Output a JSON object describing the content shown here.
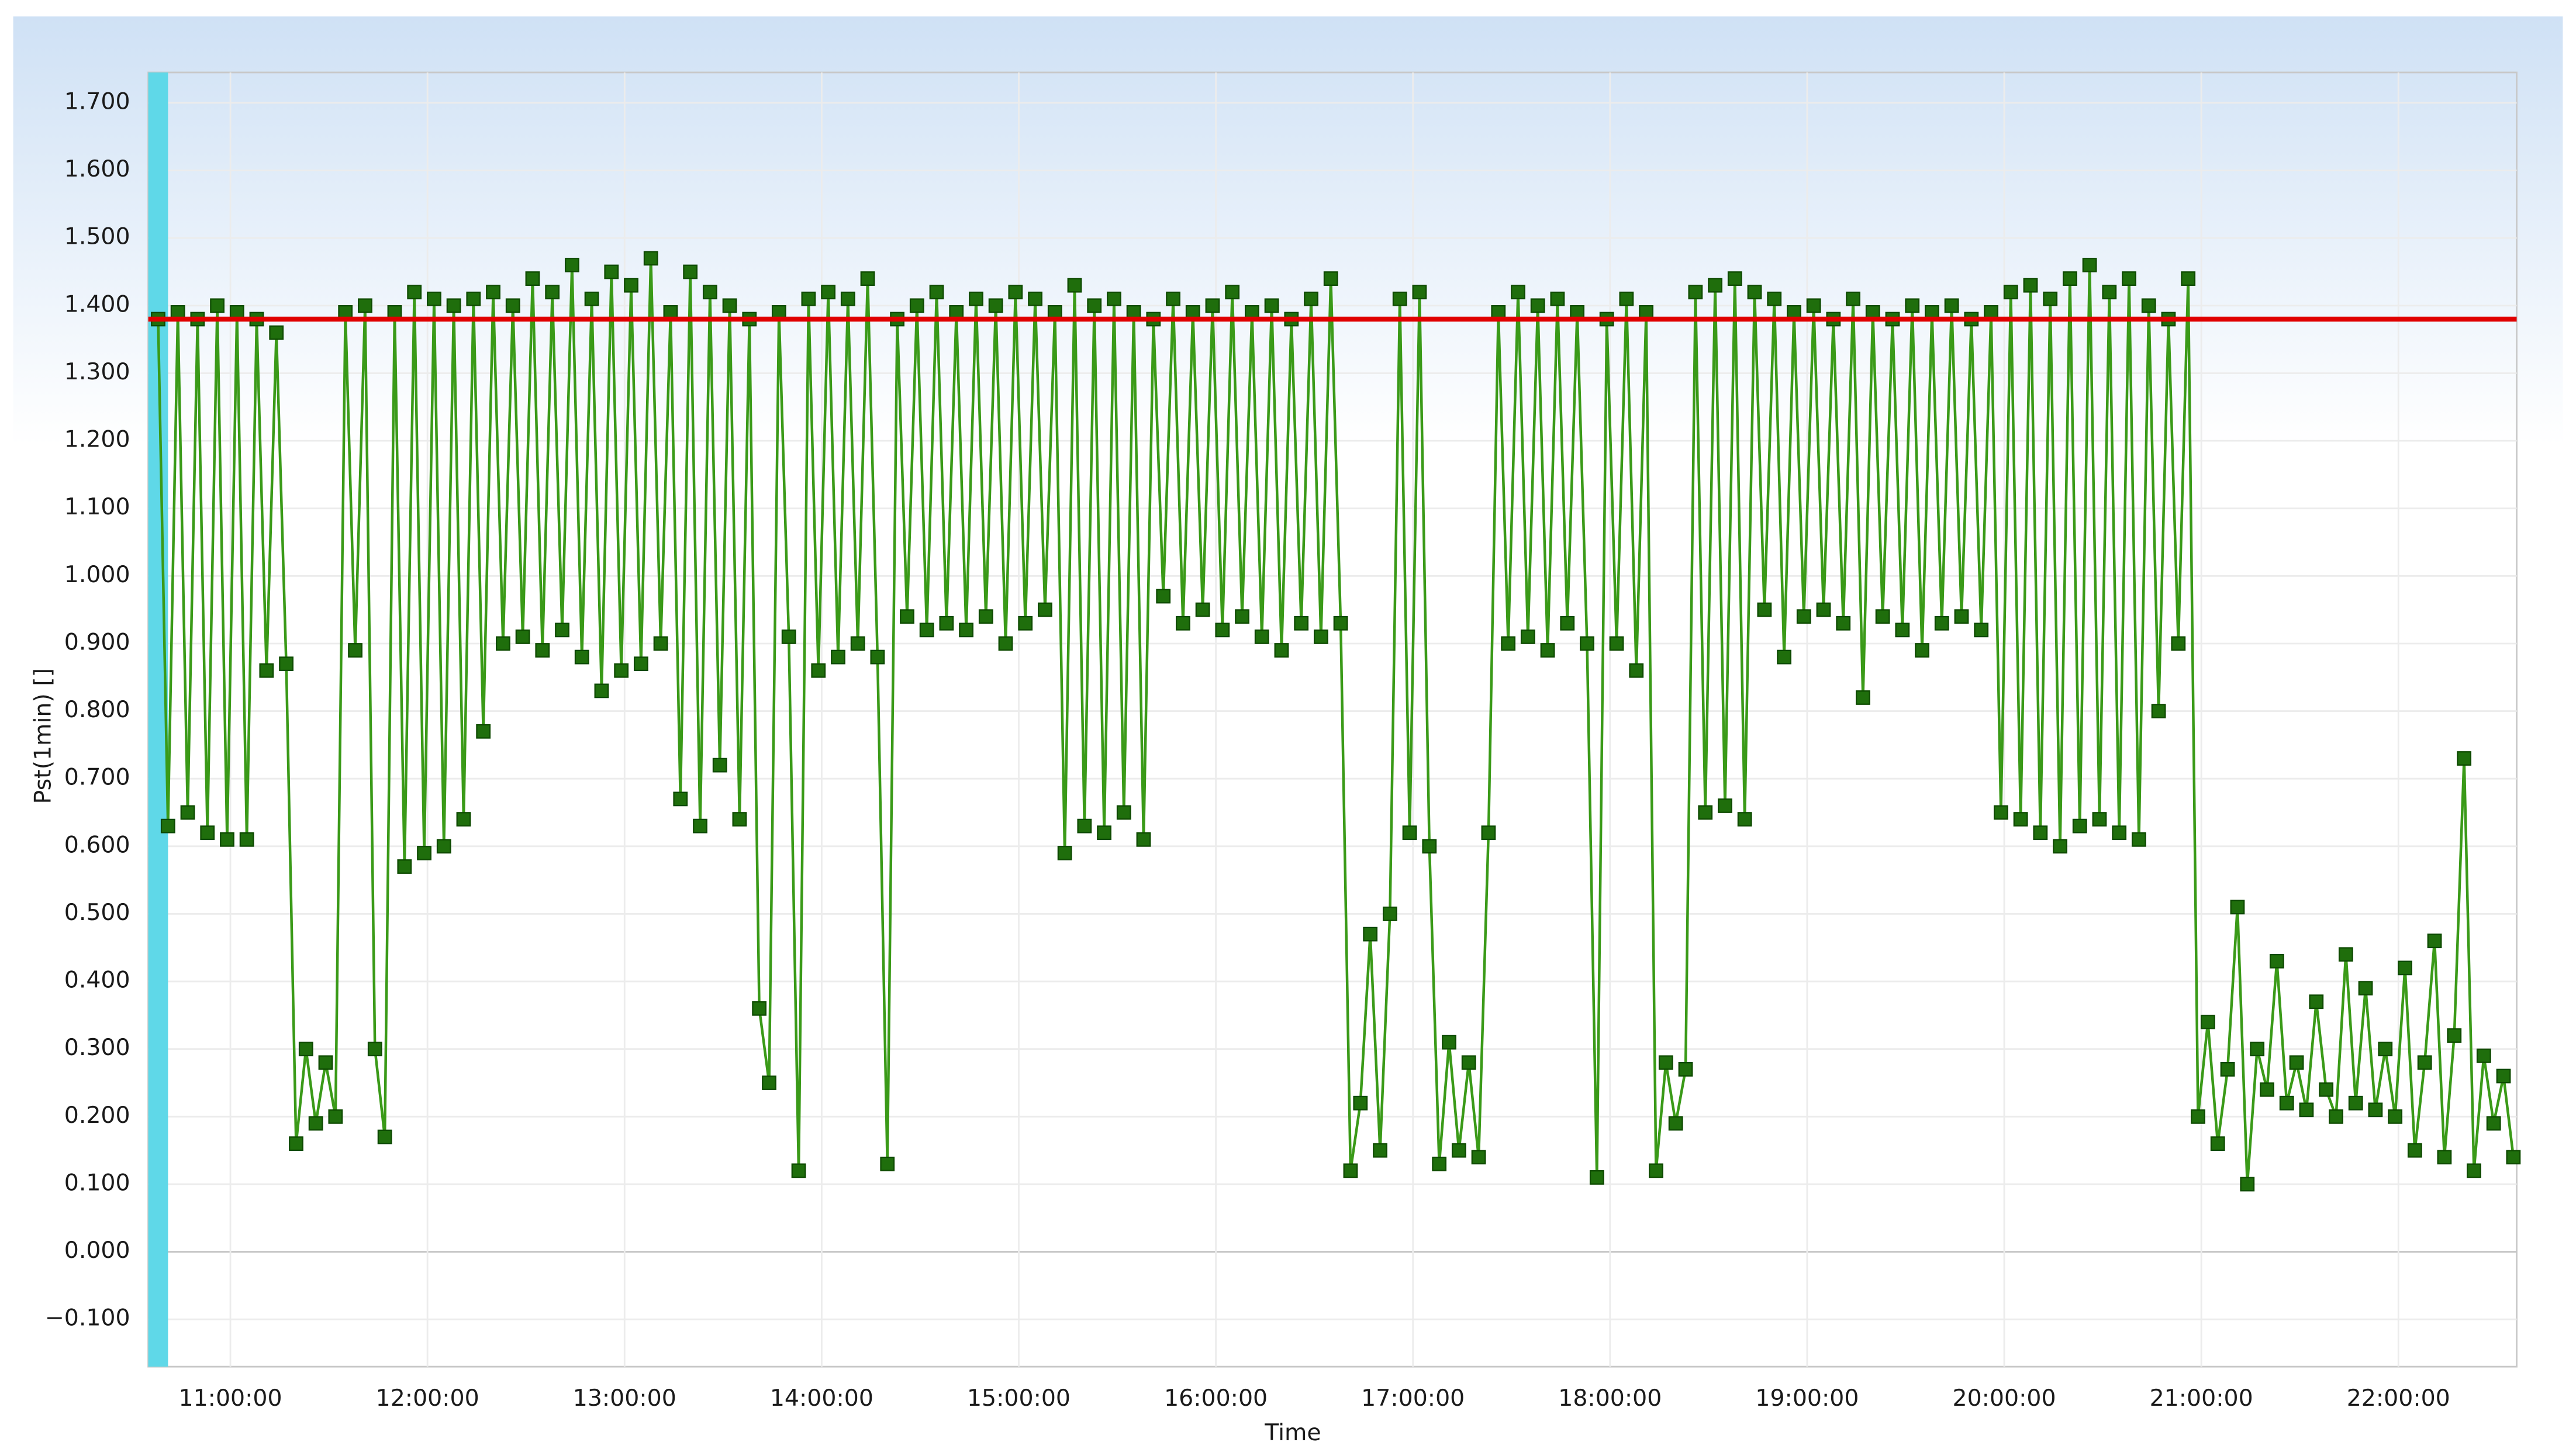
{
  "chart_data": {
    "type": "line",
    "x_label": "Time",
    "y_label": "Pst(1min) []",
    "xlim": [
      "10:35:00",
      "22:36:00"
    ],
    "xticks": [
      "11:00:00",
      "12:00:00",
      "13:00:00",
      "14:00:00",
      "15:00:00",
      "16:00:00",
      "17:00:00",
      "18:00:00",
      "19:00:00",
      "20:00:00",
      "21:00:00",
      "22:00:00"
    ],
    "ylim": [
      -0.17,
      1.745
    ],
    "yticks": [
      {
        "value": -0.1,
        "label": "−0.100"
      },
      {
        "value": 0,
        "label": "0.000"
      },
      {
        "value": 0.1,
        "label": "0.100"
      },
      {
        "value": 0.2,
        "label": "0.200"
      },
      {
        "value": 0.3,
        "label": "0.300"
      },
      {
        "value": 0.4,
        "label": "0.400"
      },
      {
        "value": 0.5,
        "label": "0.500"
      },
      {
        "value": 0.6,
        "label": "0.600"
      },
      {
        "value": 0.7,
        "label": "0.700"
      },
      {
        "value": 0.8,
        "label": "0.800"
      },
      {
        "value": 0.9,
        "label": "0.900"
      },
      {
        "value": 1.0,
        "label": "1.000"
      },
      {
        "value": 1.1,
        "label": "1.100"
      },
      {
        "value": 1.2,
        "label": "1.200"
      },
      {
        "value": 1.3,
        "label": "1.300"
      },
      {
        "value": 1.4,
        "label": "1.400"
      },
      {
        "value": 1.5,
        "label": "1.500"
      },
      {
        "value": 1.6,
        "label": "1.600"
      },
      {
        "value": 1.7,
        "label": "1.700"
      }
    ],
    "grid": true,
    "reference_line": {
      "value": 1.38,
      "color": "#e00000"
    },
    "x": [
      "10:38:00",
      "10:41:00",
      "10:44:00",
      "10:47:00",
      "10:50:00",
      "10:53:00",
      "10:56:00",
      "10:59:00",
      "11:02:00",
      "11:05:00",
      "11:08:00",
      "11:11:00",
      "11:14:00",
      "11:17:00",
      "11:20:00",
      "11:23:00",
      "11:26:00",
      "11:29:00",
      "11:32:00",
      "11:35:00",
      "11:38:00",
      "11:41:00",
      "11:44:00",
      "11:47:00",
      "11:50:00",
      "11:53:00",
      "11:56:00",
      "11:59:00",
      "12:02:00",
      "12:05:00",
      "12:08:00",
      "12:11:00",
      "12:14:00",
      "12:17:00",
      "12:20:00",
      "12:23:00",
      "12:26:00",
      "12:29:00",
      "12:32:00",
      "12:35:00",
      "12:38:00",
      "12:41:00",
      "12:44:00",
      "12:47:00",
      "12:50:00",
      "12:53:00",
      "12:56:00",
      "12:59:00",
      "13:02:00",
      "13:05:00",
      "13:08:00",
      "13:11:00",
      "13:14:00",
      "13:17:00",
      "13:20:00",
      "13:23:00",
      "13:26:00",
      "13:29:00",
      "13:32:00",
      "13:35:00",
      "13:38:00",
      "13:41:00",
      "13:44:00",
      "13:47:00",
      "13:50:00",
      "13:53:00",
      "13:56:00",
      "13:59:00",
      "14:02:00",
      "14:05:00",
      "14:08:00",
      "14:11:00",
      "14:14:00",
      "14:17:00",
      "14:20:00",
      "14:23:00",
      "14:26:00",
      "14:29:00",
      "14:32:00",
      "14:35:00",
      "14:38:00",
      "14:41:00",
      "14:44:00",
      "14:47:00",
      "14:50:00",
      "14:53:00",
      "14:56:00",
      "14:59:00",
      "15:02:00",
      "15:05:00",
      "15:08:00",
      "15:11:00",
      "15:14:00",
      "15:17:00",
      "15:20:00",
      "15:23:00",
      "15:26:00",
      "15:29:00",
      "15:32:00",
      "15:35:00",
      "15:38:00",
      "15:41:00",
      "15:44:00",
      "15:47:00",
      "15:50:00",
      "15:53:00",
      "15:56:00",
      "15:59:00",
      "16:02:00",
      "16:05:00",
      "16:08:00",
      "16:11:00",
      "16:14:00",
      "16:17:00",
      "16:20:00",
      "16:23:00",
      "16:26:00",
      "16:29:00",
      "16:32:00",
      "16:35:00",
      "16:38:00",
      "16:41:00",
      "16:44:00",
      "16:47:00",
      "16:50:00",
      "16:53:00",
      "16:56:00",
      "16:59:00",
      "17:02:00",
      "17:05:00",
      "17:08:00",
      "17:11:00",
      "17:14:00",
      "17:17:00",
      "17:20:00",
      "17:23:00",
      "17:26:00",
      "17:29:00",
      "17:32:00",
      "17:35:00",
      "17:38:00",
      "17:41:00",
      "17:44:00",
      "17:47:00",
      "17:50:00",
      "17:53:00",
      "17:56:00",
      "17:59:00",
      "18:02:00",
      "18:05:00",
      "18:08:00",
      "18:11:00",
      "18:14:00",
      "18:17:00",
      "18:20:00",
      "18:23:00",
      "18:26:00",
      "18:29:00",
      "18:32:00",
      "18:35:00",
      "18:38:00",
      "18:41:00",
      "18:44:00",
      "18:47:00",
      "18:50:00",
      "18:53:00",
      "18:56:00",
      "18:59:00",
      "19:02:00",
      "19:05:00",
      "19:08:00",
      "19:11:00",
      "19:14:00",
      "19:17:00",
      "19:20:00",
      "19:23:00",
      "19:26:00",
      "19:29:00",
      "19:32:00",
      "19:35:00",
      "19:38:00",
      "19:41:00",
      "19:44:00",
      "19:47:00",
      "19:50:00",
      "19:53:00",
      "19:56:00",
      "19:59:00",
      "20:02:00",
      "20:05:00",
      "20:08:00",
      "20:11:00",
      "20:14:00",
      "20:17:00",
      "20:20:00",
      "20:23:00",
      "20:26:00",
      "20:29:00",
      "20:32:00",
      "20:35:00",
      "20:38:00",
      "20:41:00",
      "20:44:00",
      "20:47:00",
      "20:50:00",
      "20:53:00",
      "20:56:00",
      "20:59:00",
      "21:02:00",
      "21:05:00",
      "21:08:00",
      "21:11:00",
      "21:14:00",
      "21:17:00",
      "21:20:00",
      "21:23:00",
      "21:26:00",
      "21:29:00",
      "21:32:00",
      "21:35:00",
      "21:38:00",
      "21:41:00",
      "21:44:00",
      "21:47:00",
      "21:50:00",
      "21:53:00",
      "21:56:00",
      "21:59:00",
      "22:02:00",
      "22:05:00",
      "22:08:00",
      "22:11:00",
      "22:14:00",
      "22:17:00",
      "22:20:00",
      "22:23:00",
      "22:26:00",
      "22:29:00",
      "22:32:00",
      "22:35:00"
    ],
    "series": [
      {
        "color": "#1f6e0c",
        "values": [
          1.38,
          0.63,
          1.39,
          0.65,
          1.38,
          0.62,
          1.4,
          0.61,
          1.39,
          0.61,
          1.38,
          0.86,
          1.36,
          0.87,
          0.16,
          0.3,
          0.19,
          0.28,
          0.2,
          1.39,
          0.89,
          1.4,
          0.3,
          0.17,
          1.39,
          0.57,
          1.42,
          0.59,
          1.41,
          0.6,
          1.4,
          0.64,
          1.41,
          0.77,
          1.42,
          0.9,
          1.4,
          0.91,
          1.44,
          0.89,
          1.42,
          0.92,
          1.46,
          0.88,
          1.41,
          0.83,
          1.45,
          0.86,
          1.43,
          0.87,
          1.47,
          0.9,
          1.39,
          0.67,
          1.45,
          0.63,
          1.42,
          0.72,
          1.4,
          0.64,
          1.38,
          0.36,
          0.25,
          1.39,
          0.91,
          0.12,
          1.41,
          0.86,
          1.42,
          0.88,
          1.41,
          0.9,
          1.44,
          0.88,
          0.13,
          1.38,
          0.94,
          1.4,
          0.92,
          1.42,
          0.93,
          1.39,
          0.92,
          1.41,
          0.94,
          1.4,
          0.9,
          1.42,
          0.93,
          1.41,
          0.95,
          1.39,
          0.59,
          1.43,
          0.63,
          1.4,
          0.62,
          1.41,
          0.65,
          1.39,
          0.61,
          1.38,
          0.97,
          1.41,
          0.93,
          1.39,
          0.95,
          1.4,
          0.92,
          1.42,
          0.94,
          1.39,
          0.91,
          1.4,
          0.89,
          1.38,
          0.93,
          1.41,
          0.91,
          1.44,
          0.93,
          0.12,
          0.22,
          0.47,
          0.15,
          0.5,
          1.41,
          0.62,
          1.42,
          0.6,
          0.13,
          0.31,
          0.15,
          0.28,
          0.14,
          0.62,
          1.39,
          0.9,
          1.42,
          0.91,
          1.4,
          0.89,
          1.41,
          0.93,
          1.39,
          0.9,
          0.11,
          1.38,
          0.9,
          1.41,
          0.86,
          1.39,
          0.12,
          0.28,
          0.19,
          0.27,
          1.42,
          0.65,
          1.43,
          0.66,
          1.44,
          0.64,
          1.42,
          0.95,
          1.41,
          0.88,
          1.39,
          0.94,
          1.4,
          0.95,
          1.38,
          0.93,
          1.41,
          0.82,
          1.39,
          0.94,
          1.38,
          0.92,
          1.4,
          0.89,
          1.39,
          0.93,
          1.4,
          0.94,
          1.38,
          0.92,
          1.39,
          0.65,
          1.42,
          0.64,
          1.43,
          0.62,
          1.41,
          0.6,
          1.44,
          0.63,
          1.46,
          0.64,
          1.42,
          0.62,
          1.44,
          0.61,
          1.4,
          0.8,
          1.38,
          0.9,
          1.44,
          0.2,
          0.34,
          0.16,
          0.27,
          0.51,
          0.1,
          0.3,
          0.24,
          0.43,
          0.22,
          0.28,
          0.21,
          0.37,
          0.24,
          0.2,
          0.44,
          0.22,
          0.39,
          0.21,
          0.3,
          0.2,
          0.42,
          0.15,
          0.28,
          0.46,
          0.14,
          0.32,
          0.73,
          0.12,
          0.29,
          0.19,
          0.26,
          0.14
        ]
      }
    ]
  }
}
